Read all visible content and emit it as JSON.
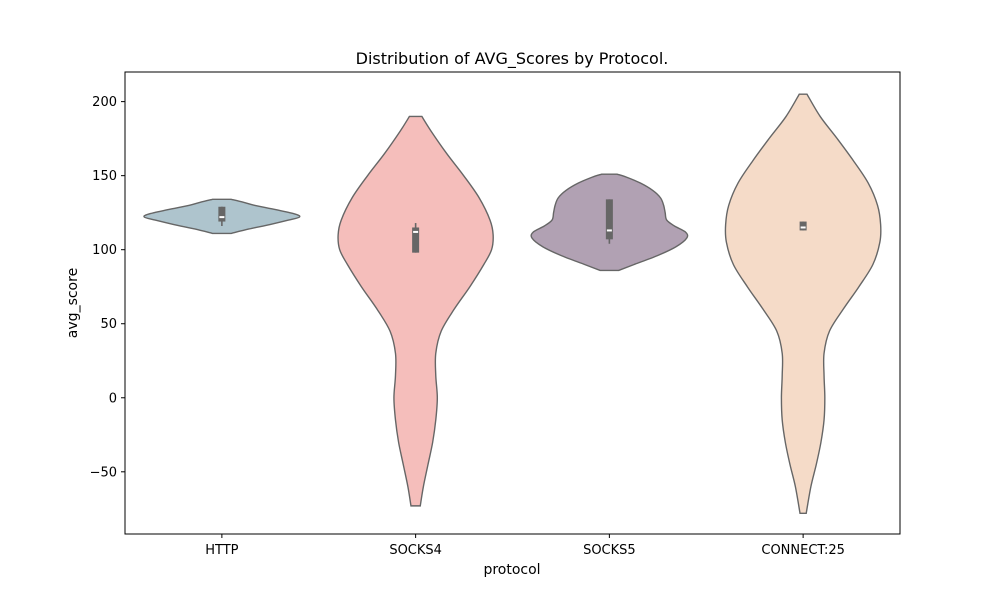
{
  "chart_data": {
    "type": "violin",
    "title": "Distribution of AVG_Scores by Protocol.",
    "xlabel": "protocol",
    "ylabel": "avg_score",
    "ylim": [
      -92,
      220
    ],
    "yticks": [
      -50,
      0,
      50,
      100,
      150,
      200
    ],
    "ytick_labels": [
      "−50",
      "0",
      "50",
      "100",
      "150",
      "200"
    ],
    "grid": false,
    "legend": "none",
    "categories": [
      "HTTP",
      "SOCKS4",
      "SOCKS5",
      "CONNECT:25"
    ],
    "series": [
      {
        "category": "HTTP",
        "color": "#aec4cd",
        "min": 111,
        "max": 134,
        "q1": 119,
        "median": 122,
        "q3": 129,
        "whisker_low": 116,
        "whisker_high": 129,
        "density": [
          [
            111,
            0.12
          ],
          [
            114,
            0.35
          ],
          [
            117,
            0.62
          ],
          [
            120,
            0.86
          ],
          [
            122,
            1.0
          ],
          [
            124,
            0.95
          ],
          [
            127,
            0.7
          ],
          [
            130,
            0.42
          ],
          [
            132,
            0.28
          ],
          [
            134,
            0.12
          ]
        ]
      },
      {
        "category": "SOCKS4",
        "color": "#f5bebb",
        "min": -73,
        "max": 190,
        "q1": 98,
        "median": 112,
        "q3": 115,
        "whisker_low": 98,
        "whisker_high": 118,
        "density": [
          [
            -73,
            0.06
          ],
          [
            -60,
            0.1
          ],
          [
            -45,
            0.16
          ],
          [
            -30,
            0.22
          ],
          [
            -15,
            0.26
          ],
          [
            0,
            0.28
          ],
          [
            15,
            0.26
          ],
          [
            30,
            0.26
          ],
          [
            45,
            0.33
          ],
          [
            60,
            0.5
          ],
          [
            75,
            0.7
          ],
          [
            90,
            0.88
          ],
          [
            100,
            0.98
          ],
          [
            110,
            1.0
          ],
          [
            120,
            0.96
          ],
          [
            135,
            0.82
          ],
          [
            150,
            0.62
          ],
          [
            165,
            0.4
          ],
          [
            180,
            0.2
          ],
          [
            190,
            0.08
          ]
        ]
      },
      {
        "category": "SOCKS5",
        "color": "#b1a1b3",
        "min": 86,
        "max": 151,
        "q1": 107,
        "median": 113,
        "q3": 134,
        "whisker_low": 104,
        "whisker_high": 134,
        "density": [
          [
            86,
            0.12
          ],
          [
            90,
            0.32
          ],
          [
            96,
            0.62
          ],
          [
            102,
            0.86
          ],
          [
            108,
            1.0
          ],
          [
            112,
            0.98
          ],
          [
            116,
            0.84
          ],
          [
            120,
            0.74
          ],
          [
            125,
            0.72
          ],
          [
            130,
            0.7
          ],
          [
            135,
            0.66
          ],
          [
            140,
            0.56
          ],
          [
            145,
            0.4
          ],
          [
            149,
            0.22
          ],
          [
            151,
            0.1
          ]
        ]
      },
      {
        "category": "CONNECT:25",
        "color": "#f5dbc8",
        "min": -78,
        "max": 205,
        "q1": 113,
        "median": 115,
        "q3": 119,
        "whisker_low": 113,
        "whisker_high": 119,
        "density": [
          [
            -78,
            0.04
          ],
          [
            -60,
            0.1
          ],
          [
            -45,
            0.17
          ],
          [
            -30,
            0.23
          ],
          [
            -15,
            0.27
          ],
          [
            0,
            0.28
          ],
          [
            15,
            0.27
          ],
          [
            30,
            0.27
          ],
          [
            45,
            0.34
          ],
          [
            60,
            0.52
          ],
          [
            75,
            0.72
          ],
          [
            90,
            0.9
          ],
          [
            105,
            0.99
          ],
          [
            117,
            1.0
          ],
          [
            130,
            0.96
          ],
          [
            145,
            0.84
          ],
          [
            160,
            0.65
          ],
          [
            175,
            0.44
          ],
          [
            190,
            0.22
          ],
          [
            205,
            0.05
          ]
        ]
      }
    ]
  }
}
